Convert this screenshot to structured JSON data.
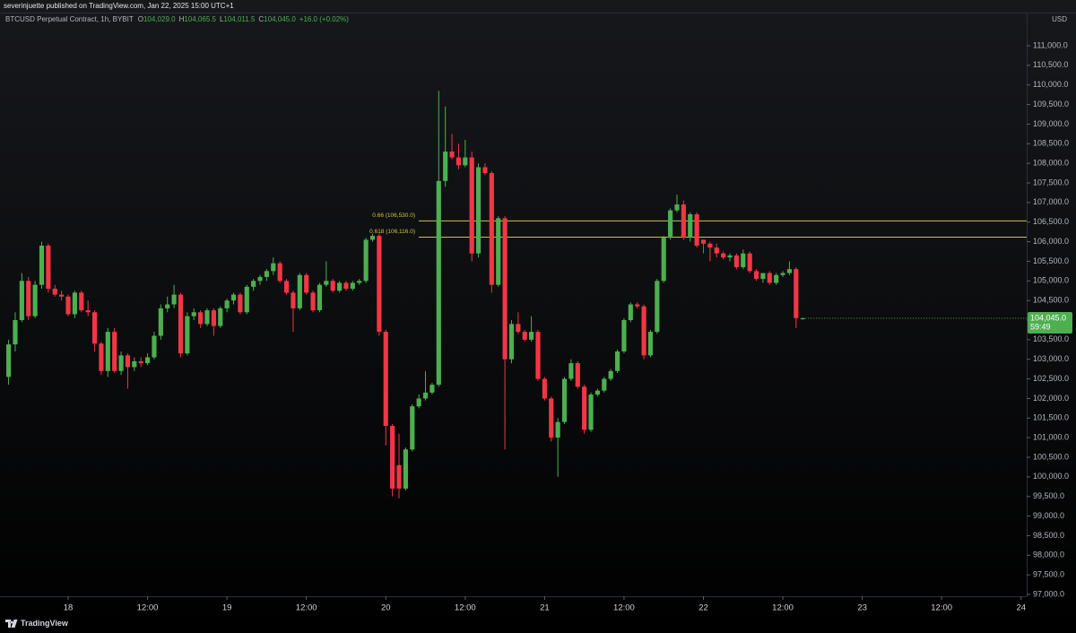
{
  "header": {
    "publisher": "severinjuette published on TradingView.com, Jan 22, 2025 15:00 UTC+1",
    "currency": "USD",
    "brand": "TradingView"
  },
  "chart_data": {
    "type": "candlestick",
    "title": "BTCUSD Perpetual Contract, 1h, BYBIT",
    "readout": [
      {
        "key": "O",
        "text": "104,029.0"
      },
      {
        "key": "H",
        "text": "104,065.5"
      },
      {
        "key": "L",
        "text": "104,011.5"
      },
      {
        "key": "C",
        "text": "104,045.0"
      }
    ],
    "change": "+16.0 (+0.02%)",
    "up_color": "#4caf50",
    "down_color": "#f23645",
    "grid": false,
    "xlim": [
      -1.3,
      153.85
    ],
    "xticks": [
      {
        "value": 9,
        "label": "18"
      },
      {
        "value": 21,
        "label": "12:00"
      },
      {
        "value": 33,
        "label": "19"
      },
      {
        "value": 45,
        "label": "12:00"
      },
      {
        "value": 57,
        "label": "20"
      },
      {
        "value": 69,
        "label": "12:00"
      },
      {
        "value": 81,
        "label": "21"
      },
      {
        "value": 93,
        "label": "12:00"
      },
      {
        "value": 105,
        "label": "22"
      },
      {
        "value": 117,
        "label": "12:00"
      },
      {
        "value": 129,
        "label": "23"
      },
      {
        "value": 141,
        "label": "12:00"
      },
      {
        "value": 153,
        "label": "24"
      }
    ],
    "ylim": [
      96954,
      111824
    ],
    "yticks": [
      {
        "value": 97000,
        "label": "97,000.0"
      },
      {
        "value": 97500,
        "label": "97,500.0"
      },
      {
        "value": 98000,
        "label": "98,000.0"
      },
      {
        "value": 98500,
        "label": "98,500.0"
      },
      {
        "value": 99000,
        "label": "99,000.0"
      },
      {
        "value": 99500,
        "label": "99,500.0"
      },
      {
        "value": 100000,
        "label": "100,000.0"
      },
      {
        "value": 100500,
        "label": "100,500.0"
      },
      {
        "value": 101000,
        "label": "101,000.0"
      },
      {
        "value": 101500,
        "label": "101,500.0"
      },
      {
        "value": 102000,
        "label": "102,000.0"
      },
      {
        "value": 102500,
        "label": "102,500.0"
      },
      {
        "value": 103000,
        "label": "103,000.0"
      },
      {
        "value": 103500,
        "label": "103,500.0"
      },
      {
        "value": 104000,
        "label": "104,000.0"
      },
      {
        "value": 104500,
        "label": "104,500.0"
      },
      {
        "value": 105000,
        "label": "105,000.0"
      },
      {
        "value": 105500,
        "label": "105,500.0"
      },
      {
        "value": 106000,
        "label": "106,000.0"
      },
      {
        "value": 106500,
        "label": "106,500.0"
      },
      {
        "value": 107000,
        "label": "107,000.0"
      },
      {
        "value": 107500,
        "label": "107,500.0"
      },
      {
        "value": 108000,
        "label": "108,000.0"
      },
      {
        "value": 108500,
        "label": "108,500.0"
      },
      {
        "value": 109000,
        "label": "109,000.0"
      },
      {
        "value": 109500,
        "label": "109,500.0"
      },
      {
        "value": 110000,
        "label": "110,000.0"
      },
      {
        "value": 110500,
        "label": "110,500.0"
      },
      {
        "value": 111000,
        "label": "111,000.0"
      }
    ],
    "open": [
      102550,
      103380,
      104000,
      105000,
      104100,
      104900,
      105900,
      104800,
      104650,
      104600,
      104150,
      104700,
      104250,
      104200,
      103400,
      102700,
      103700,
      102700,
      103100,
      102800,
      102950,
      102900,
      103050,
      103600,
      104300,
      104400,
      104650,
      103150,
      104100,
      104200,
      103900,
      104250,
      103850,
      104300,
      104500,
      104650,
      104200,
      104850,
      105000,
      105100,
      105250,
      105450,
      105000,
      104700,
      104300,
      105150,
      104700,
      104250,
      104900,
      105000,
      104750,
      104950,
      104800,
      104950,
      105000,
      106050,
      106150,
      103700,
      101300,
      100300,
      99700,
      100700,
      101800,
      102000,
      102150,
      102350,
      107550,
      108300,
      108150,
      107950,
      108150,
      105700,
      107900,
      107750,
      104900,
      106600,
      103000,
      103900,
      103700,
      103500,
      103700,
      102500,
      102000,
      101000,
      101400,
      102500,
      102900,
      102300,
      101200,
      102100,
      102200,
      102500,
      102700,
      103200,
      104000,
      104400,
      104350,
      103100,
      103700,
      105000,
      106100,
      106800,
      106950,
      106100,
      106700,
      106050,
      105950,
      105850,
      105700,
      105600,
      105650,
      105350,
      105700,
      105250,
      105050,
      105200,
      104950,
      105150,
      105200,
      105300,
      104029
    ],
    "high": [
      103500,
      104200,
      105200,
      105100,
      105000,
      106000,
      105950,
      104900,
      104750,
      104650,
      104750,
      104750,
      104500,
      104250,
      103450,
      103800,
      103800,
      103200,
      103150,
      103050,
      103050,
      103150,
      103700,
      104400,
      104600,
      104900,
      104700,
      104200,
      104300,
      104250,
      104300,
      104300,
      104350,
      104550,
      104700,
      104700,
      104900,
      105050,
      105150,
      105300,
      105600,
      105500,
      105050,
      104750,
      105200,
      105200,
      104750,
      104950,
      105500,
      105050,
      105000,
      105000,
      105000,
      105050,
      106100,
      106200,
      106200,
      103750,
      101350,
      101100,
      100750,
      101850,
      102100,
      102700,
      102400,
      109850,
      109450,
      108750,
      108500,
      108600,
      108300,
      108000,
      108000,
      107800,
      106650,
      106650,
      104000,
      104200,
      103750,
      104100,
      103750,
      102550,
      102050,
      101500,
      102550,
      103000,
      102950,
      102350,
      102150,
      102250,
      102550,
      102750,
      103250,
      104050,
      104450,
      104450,
      104400,
      103750,
      105050,
      106150,
      106850,
      107200,
      107050,
      106750,
      106750,
      106050,
      106000,
      105950,
      105750,
      105700,
      105700,
      105800,
      105750,
      105300,
      105200,
      105250,
      105200,
      105250,
      105500,
      105350,
      104065.5
    ],
    "low": [
      102350,
      103200,
      103950,
      104000,
      104050,
      104800,
      104700,
      104600,
      104500,
      104100,
      104050,
      104200,
      104100,
      103200,
      102600,
      102550,
      102650,
      102600,
      102250,
      102700,
      102800,
      102850,
      103000,
      103500,
      104200,
      104300,
      103050,
      103100,
      104000,
      103800,
      103850,
      103600,
      103800,
      104200,
      104400,
      104150,
      104150,
      104750,
      104900,
      105000,
      105150,
      104950,
      104650,
      103700,
      104250,
      104650,
      104200,
      104200,
      104850,
      104700,
      104700,
      104750,
      104750,
      104900,
      104950,
      106000,
      103600,
      100800,
      99500,
      99450,
      99650,
      100650,
      101750,
      101950,
      102100,
      102300,
      107400,
      108100,
      107850,
      107900,
      105500,
      105600,
      107700,
      104700,
      104850,
      100700,
      102900,
      103650,
      103450,
      103450,
      102450,
      101950,
      100900,
      100000,
      101350,
      102450,
      102250,
      101100,
      101150,
      102050,
      102150,
      102450,
      102650,
      103150,
      103950,
      104300,
      103000,
      103050,
      103650,
      104950,
      106050,
      106750,
      106050,
      106000,
      105850,
      105700,
      105500,
      105600,
      105550,
      105500,
      105300,
      105300,
      105200,
      105000,
      104950,
      104900,
      104900,
      105100,
      105150,
      103800,
      104011.5
    ],
    "close": [
      103380,
      104000,
      105000,
      104100,
      104900,
      105900,
      104800,
      104650,
      104600,
      104150,
      104700,
      104250,
      104200,
      103400,
      102700,
      103700,
      102700,
      103100,
      102800,
      102950,
      102900,
      103050,
      103600,
      104300,
      104400,
      104650,
      103150,
      104100,
      104200,
      103900,
      104250,
      103850,
      104300,
      104500,
      104650,
      104200,
      104850,
      105000,
      105100,
      105250,
      105450,
      105000,
      104700,
      104300,
      105150,
      104700,
      104250,
      104900,
      105000,
      104750,
      104950,
      104800,
      104950,
      105000,
      106050,
      106150,
      103700,
      101300,
      99700,
      99700,
      100700,
      101800,
      102000,
      102150,
      102350,
      107550,
      108300,
      108150,
      107950,
      108150,
      105700,
      107900,
      107750,
      104900,
      106600,
      103000,
      103900,
      103700,
      103500,
      103700,
      102500,
      102000,
      101000,
      101400,
      102500,
      102900,
      102300,
      101200,
      102100,
      102200,
      102500,
      102700,
      103200,
      104000,
      104400,
      104350,
      103100,
      103700,
      105000,
      106100,
      106800,
      106950,
      106100,
      106700,
      105900,
      105950,
      105850,
      105700,
      105600,
      105650,
      105350,
      105700,
      105250,
      105050,
      105200,
      104950,
      105150,
      105200,
      105300,
      104050,
      104045
    ],
    "annotations": [
      {
        "label": "0.66 (106,530.0)",
        "value": 106530,
        "color": "#c9c83a"
      },
      {
        "label": "0.618 (106,116.0)",
        "value": 106116,
        "color": "#c9c83a"
      }
    ],
    "last_price": {
      "value": 104045,
      "label": "104,045.0",
      "countdown": "59:49",
      "color": "#4caf50"
    }
  }
}
